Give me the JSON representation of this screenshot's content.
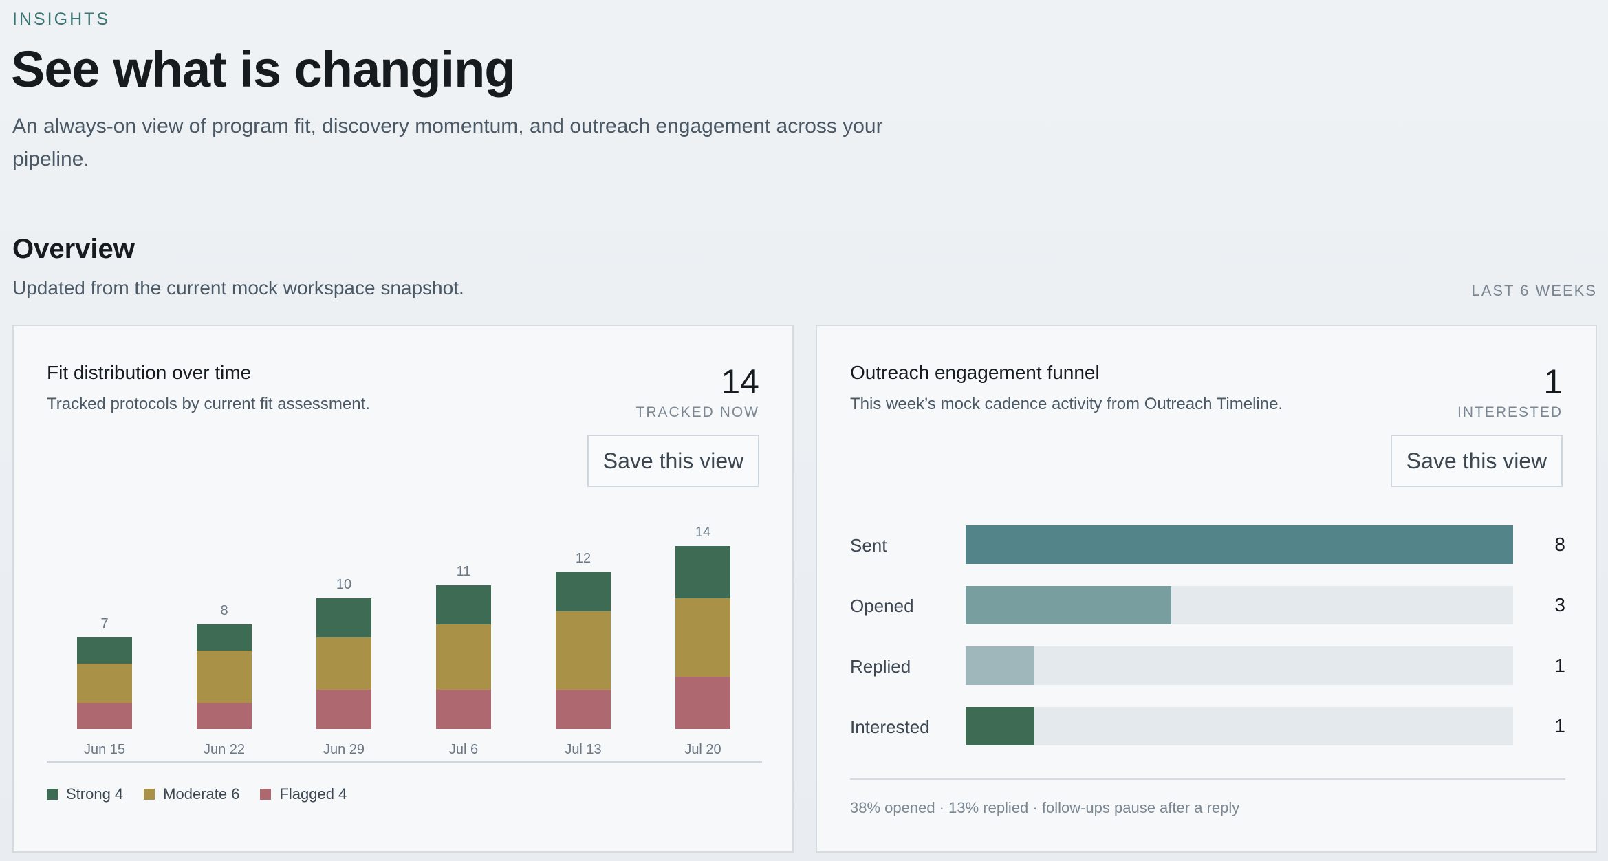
{
  "header": {
    "eyebrow": "INSIGHTS",
    "title": "See what is changing",
    "subtitle": "An always-on view of program fit, discovery momentum, and outreach engagement across your pipeline."
  },
  "overview": {
    "title": "Overview",
    "subtitle": "Updated from the current mock workspace snapshot.",
    "range": "LAST 6 WEEKS"
  },
  "fit_card": {
    "title": "Fit distribution over time",
    "subtitle": "Tracked protocols by current fit assessment.",
    "metric_value": "14",
    "metric_label": "TRACKED NOW",
    "save_label": "Save this view",
    "legend": {
      "strong": "Strong 4",
      "moderate": "Moderate 6",
      "flagged": "Flagged 4"
    }
  },
  "funnel_card": {
    "title": "Outreach engagement funnel",
    "subtitle": "This week’s mock cadence activity from Outreach Timeline.",
    "metric_value": "1",
    "metric_label": "INTERESTED",
    "save_label": "Save this view",
    "rows": [
      {
        "label": "Sent",
        "count": "8",
        "value": 8,
        "color": "#528489"
      },
      {
        "label": "Opened",
        "count": "3",
        "value": 3,
        "color": "#789ea0"
      },
      {
        "label": "Replied",
        "count": "1",
        "value": 1,
        "color": "#9fb7bb"
      },
      {
        "label": "Interested",
        "count": "1",
        "value": 1,
        "color": "#3d6b54"
      }
    ],
    "max": 8,
    "footer": "38% opened · 13% replied · follow-ups pause after a reply"
  },
  "colors": {
    "strong": "#3d6b54",
    "moderate": "#a99147",
    "flagged": "#ad6870",
    "accent": "#3b7474"
  },
  "chart_data": {
    "type": "bar",
    "stacked": true,
    "categories": [
      "Jun 15",
      "Jun 22",
      "Jun 29",
      "Jul 6",
      "Jul 13",
      "Jul 20"
    ],
    "series": [
      {
        "name": "Flagged",
        "values": [
          2,
          2,
          3,
          3,
          3,
          4
        ],
        "color": "#ad6870"
      },
      {
        "name": "Moderate",
        "values": [
          3,
          4,
          4,
          5,
          6,
          6
        ],
        "color": "#a99147"
      },
      {
        "name": "Strong",
        "values": [
          2,
          2,
          3,
          3,
          3,
          4
        ],
        "color": "#3d6b54"
      }
    ],
    "totals": [
      7,
      8,
      10,
      11,
      12,
      14
    ],
    "ylim": [
      0,
      14
    ],
    "grid": false,
    "legend": "bottom-left"
  }
}
